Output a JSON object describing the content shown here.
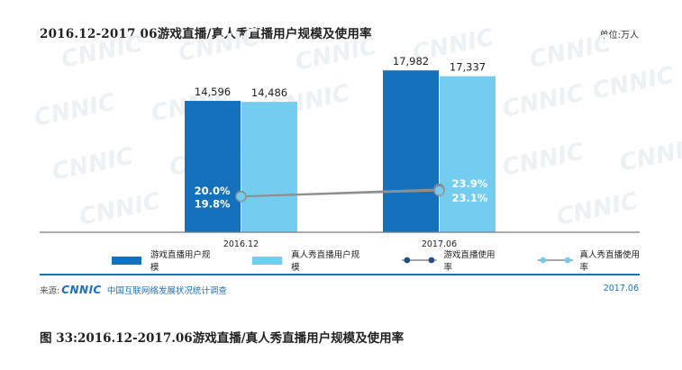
{
  "title": "2016.12-2017.06游戏直播/真人秀直播用户规模及使用率",
  "unit_label": "单位:万人",
  "chart_data": {
    "type": "bar",
    "categories": [
      "2016.12",
      "2017.06"
    ],
    "series": [
      {
        "name": "游戏直播用户规模",
        "type": "bar",
        "values": [
          14596,
          17982
        ],
        "labels": [
          "14,596",
          "17,982"
        ],
        "color": "#1671bc"
      },
      {
        "name": "真人秀直播用户规模",
        "type": "bar",
        "values": [
          14486,
          17337
        ],
        "labels": [
          "14,486",
          "17,337"
        ],
        "color": "#74cdef"
      },
      {
        "name": "游戏直播使用率",
        "type": "line",
        "values": [
          20.0,
          23.9
        ],
        "labels": [
          "20.0%",
          "23.9%"
        ],
        "color": "#1f4f86"
      },
      {
        "name": "真人秀直播使用率",
        "type": "line",
        "values": [
          19.8,
          23.1
        ],
        "labels": [
          "19.8%",
          "23.1%"
        ],
        "color": "#74cdef"
      }
    ],
    "ylim": [
      0,
      20000
    ],
    "rate_ylim": [
      0,
      100
    ],
    "legend_position": "bottom",
    "grid": false
  },
  "source": {
    "prefix": "来源:",
    "logo": "CNNIC",
    "org": "中国互联网络发展状况统计调查"
  },
  "date": "2017.06",
  "caption": "图 33:2016.12-2017.06游戏直播/真人秀直播用户规模及使用率",
  "watermark": "CNNIC"
}
